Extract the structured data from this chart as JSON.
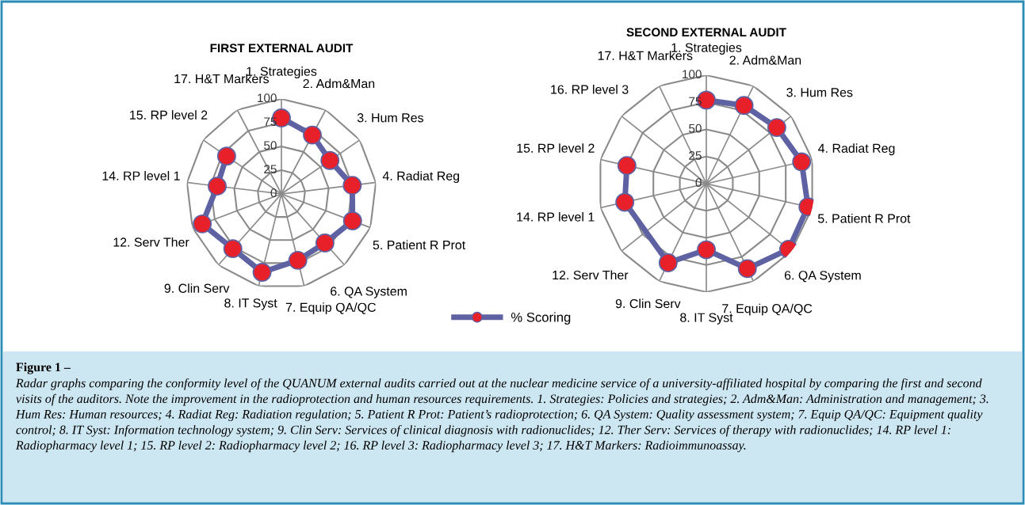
{
  "chart_data": [
    {
      "type": "radar",
      "title": "FIRST EXTERNAL AUDIT",
      "categories": [
        "1. Strategies",
        "2. Adm&Man",
        "3. Hum Res",
        "4. Radiat Reg",
        "5. Patient R Prot",
        "6. QA System",
        "7. Equip QA/QC",
        "8. IT Syst",
        "9. Clin Serv",
        "12. Serv Ther",
        "14. RP level 1",
        "15. RP level 2",
        "17. H&T Markers"
      ],
      "series": [
        {
          "name": "% Scoring",
          "color": "#5f62a2",
          "colors": [
            "#e8202a",
            "#e8202a",
            "#e8202a",
            "#e8202a",
            "#e8202a",
            "#e8202a",
            "#e8202a",
            "#e8202a",
            "#e8202a",
            "#e8202a",
            "#e8202a",
            "#e8202a",
            "#e8202a"
          ],
          "values": [
            80,
            70,
            62,
            75,
            80,
            69,
            72,
            85,
            77,
            89,
            68,
            70,
            null
          ]
        }
      ],
      "ylim": [
        0,
        100
      ],
      "yticks": [
        0,
        25,
        50,
        75,
        100
      ],
      "grid": true,
      "marker": "circle",
      "legend": "bottom",
      "annotations": [
        "Figure 1 –",
        "Radar graphs comparing the conformity level of the QUANUM external audits carried out at the nuclear medicine service of a university-affiliated hospital by comparing the first and second visits of the auditors. Note the improvement in the radioprotection and human resources requirements. 1. Strategies: Policies and strategies; 2. Adm&Man: Administration and management; 3. Hum Res: Human resources; 4. Radiat Reg: Radiation regulation; 5. Patient R Prot: Patient’s radioprotection; 6. QA System: Quality assessment system; 7. Equip QA/QC: Equipment quality control; 8. IT Syst: Information technology system; 9. Clin Serv: Services of clinical diagnosis with radionuclides; 12. Ther Serv: Services of therapy with radionuclides; 14. RP level 1: Radiopharmacy level 1; 15. RP level 2: Radiopharmacy level 2; 16. RP level 3: Radiopharmacy level 3; 17. H&T Markers: Radioimmunoassay."
      ]
    },
    {
      "type": "radar",
      "title": "SECOND EXTERNAL AUDIT",
      "categories": [
        "1. Strategies",
        "2. Adm&Man",
        "3. Hum Res",
        "4. Radiat Reg",
        "5. Patient R Prot",
        "6. QA System",
        "7. Equip QA/QC",
        "8. IT Syst",
        "9. Clin Serv",
        "12. Serv Ther",
        "14. RP level 1",
        "15. RP level 2",
        "16. RP level 3",
        "17. H&T Markers"
      ],
      "series": [
        {
          "name": "% Scoring",
          "color": "#5f62a2",
          "colors": [
            "#e8202a",
            "#e8202a",
            "#e8202a",
            "#e8202a",
            "#e8202a",
            "#e8202a",
            "#e8202a",
            "#e8202a",
            "#e8202a",
            "#e8202a",
            "#e8202a",
            "#e8202a",
            "#e8202a",
            "#e8202a"
          ],
          "values": [
            77,
            80,
            83,
            90,
            96,
            97,
            87,
            61,
            81,
            null,
            77,
            75,
            null,
            null
          ]
        }
      ],
      "ylim": [
        0,
        100
      ],
      "yticks": [
        0,
        25,
        50,
        75,
        100
      ],
      "grid": true,
      "marker": "circle"
    }
  ]
}
